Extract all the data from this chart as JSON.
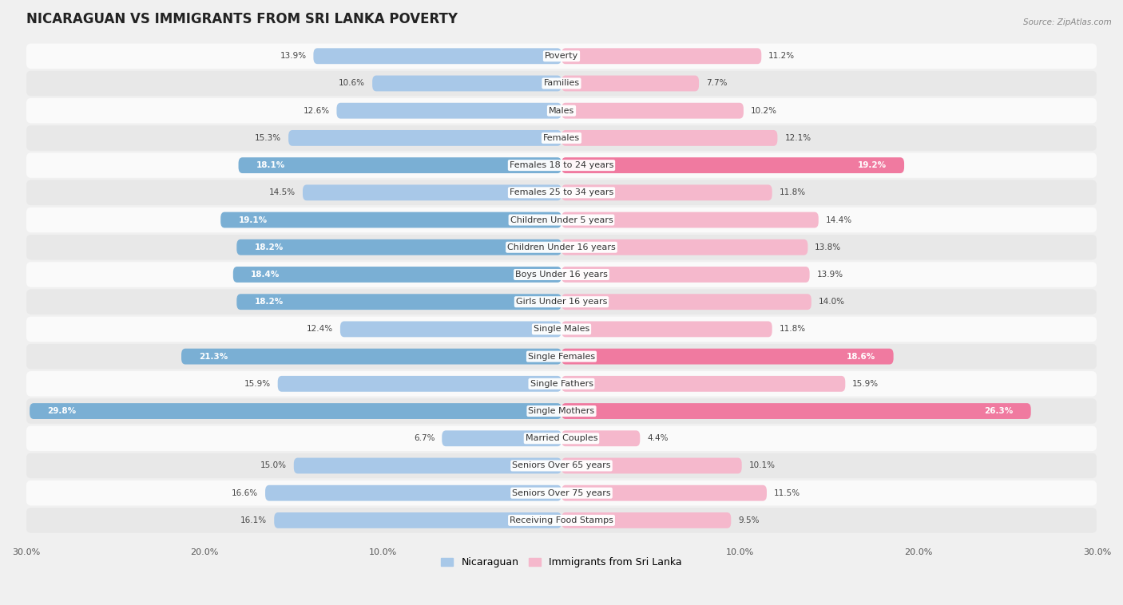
{
  "title": "NICARAGUAN VS IMMIGRANTS FROM SRI LANKA POVERTY",
  "source": "Source: ZipAtlas.com",
  "categories": [
    "Poverty",
    "Families",
    "Males",
    "Females",
    "Females 18 to 24 years",
    "Females 25 to 34 years",
    "Children Under 5 years",
    "Children Under 16 years",
    "Boys Under 16 years",
    "Girls Under 16 years",
    "Single Males",
    "Single Females",
    "Single Fathers",
    "Single Mothers",
    "Married Couples",
    "Seniors Over 65 years",
    "Seniors Over 75 years",
    "Receiving Food Stamps"
  ],
  "nicaraguan": [
    13.9,
    10.6,
    12.6,
    15.3,
    18.1,
    14.5,
    19.1,
    18.2,
    18.4,
    18.2,
    12.4,
    21.3,
    15.9,
    29.8,
    6.7,
    15.0,
    16.6,
    16.1
  ],
  "sri_lanka": [
    11.2,
    7.7,
    10.2,
    12.1,
    19.2,
    11.8,
    14.4,
    13.8,
    13.9,
    14.0,
    11.8,
    18.6,
    15.9,
    26.3,
    4.4,
    10.1,
    11.5,
    9.5
  ],
  "color_nicaraguan_light": "#a8c8e8",
  "color_nicaraguan_dark": "#7aafd4",
  "color_sri_lanka_light": "#f5b8cc",
  "color_sri_lanka_dark": "#f07aa0",
  "axis_max": 30.0,
  "bg_color": "#f0f0f0",
  "row_bg_light": "#fafafa",
  "row_bg_dark": "#e8e8e8",
  "legend_nicaraguan": "Nicaraguan",
  "legend_sri_lanka": "Immigrants from Sri Lanka",
  "title_fontsize": 12,
  "label_fontsize": 8,
  "value_fontsize": 7.5,
  "highlight_nic_indices": [
    4,
    6,
    7,
    8,
    9,
    11,
    13
  ],
  "highlight_sri_indices": [
    4,
    11,
    13
  ]
}
